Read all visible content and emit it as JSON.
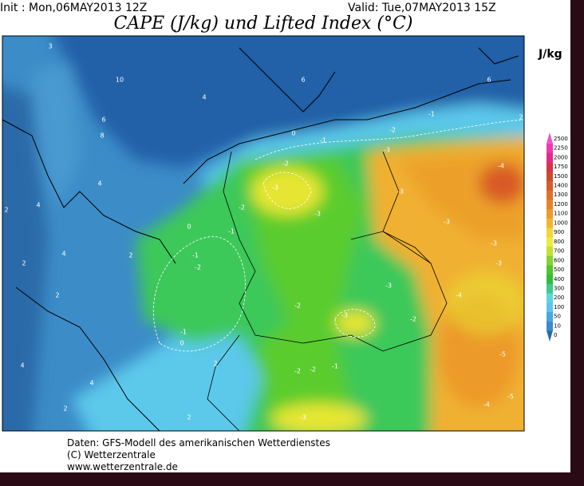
{
  "header": {
    "init": "Init : Mon,06MAY2013 12Z",
    "valid": "Valid: Tue,07MAY2013 15Z",
    "title": "CAPE (J/kg) und Lifted Index (°C)"
  },
  "colorbar": {
    "unit": "J/kg",
    "ticks": [
      0,
      10,
      50,
      100,
      200,
      300,
      400,
      500,
      600,
      700,
      800,
      900,
      1000,
      1100,
      1200,
      1300,
      1400,
      1500,
      1750,
      2000,
      2250,
      2500
    ],
    "colors": [
      "#2a6aa8",
      "#3a8ccc",
      "#46a8e0",
      "#5cc4ee",
      "#5ad8dc",
      "#3ccc8c",
      "#2ec03c",
      "#4cc82c",
      "#86d22e",
      "#c4e230",
      "#ecec3a",
      "#f4d436",
      "#f4b430",
      "#f09a2a",
      "#e88428",
      "#e07028",
      "#d65c28",
      "#cc4a2c",
      "#d8344c",
      "#e42a88",
      "#ee38b0",
      "#f050c8"
    ]
  },
  "contour_labels": [
    -3,
    -2,
    -3,
    -3,
    -2,
    -1,
    -1,
    -3,
    -3,
    -4,
    -3,
    -3,
    -3,
    -2,
    -3,
    -2,
    -4,
    -5,
    -5,
    -4,
    -3,
    -2,
    -2,
    -1,
    -1,
    0,
    -1,
    -1,
    -2,
    0,
    -2,
    2,
    2,
    4,
    2,
    4,
    6,
    10,
    8,
    4,
    4,
    2,
    2,
    2,
    6,
    2,
    0,
    6,
    3,
    4,
    2,
    4
  ],
  "footer": [
    "Daten: GFS-Modell des amerikanischen Wetterdienstes",
    "(C) Wetterzentrale",
    "www.wetterzentrale.de"
  ]
}
